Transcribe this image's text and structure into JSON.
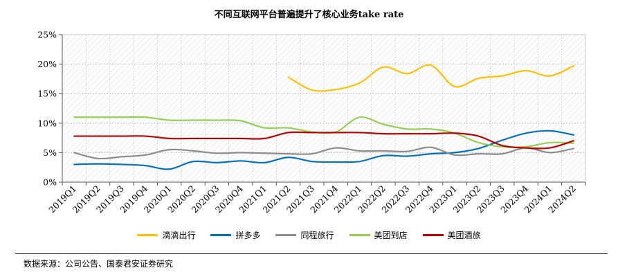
{
  "chart_data": {
    "type": "line",
    "title": "不同互联网平台普遍提升了核心业务take rate",
    "xlabel": "",
    "ylabel": "",
    "categories": [
      "2019Q1",
      "2019Q2",
      "2019Q3",
      "2019Q4",
      "2020Q1",
      "2020Q2",
      "2020Q3",
      "2020Q4",
      "2021Q1",
      "2021Q2",
      "2021Q3",
      "2021Q4",
      "2022Q1",
      "2022Q2",
      "2022Q3",
      "2022Q4",
      "2023Q1",
      "2023Q2",
      "2023Q3",
      "2023Q4",
      "2024Q1",
      "2024Q2"
    ],
    "yticks": [
      "0%",
      "5%",
      "10%",
      "15%",
      "20%",
      "25%"
    ],
    "ylim": [
      0,
      25
    ],
    "grid": true,
    "legend_position": "bottom",
    "series": [
      {
        "name": "滴滴出行",
        "color": "#FFC000",
        "values": [
          null,
          null,
          null,
          null,
          null,
          null,
          null,
          null,
          null,
          17.8,
          15.6,
          15.7,
          16.8,
          19.5,
          18.4,
          19.8,
          16.2,
          17.6,
          18.0,
          18.9,
          18.0,
          19.7
        ]
      },
      {
        "name": "拼多多",
        "color": "#0070C0",
        "values": [
          3.0,
          3.1,
          3.0,
          2.8,
          2.2,
          3.5,
          3.3,
          3.6,
          3.3,
          4.2,
          3.5,
          3.4,
          3.5,
          4.5,
          4.4,
          4.8,
          5.0,
          5.7,
          7.1,
          8.3,
          8.7,
          8.0
        ]
      },
      {
        "name": "同程旅行",
        "color": "#8C8C8C",
        "values": [
          5.0,
          4.0,
          4.3,
          4.6,
          5.5,
          5.3,
          4.9,
          5.0,
          4.9,
          4.8,
          4.8,
          5.8,
          5.3,
          5.3,
          5.2,
          5.9,
          4.6,
          4.8,
          4.8,
          5.8,
          5.0,
          5.7
        ]
      },
      {
        "name": "美团到店",
        "color": "#92D050",
        "values": [
          11.0,
          11.0,
          11.0,
          11.0,
          10.5,
          10.5,
          10.5,
          10.4,
          9.2,
          9.2,
          8.5,
          8.5,
          11.0,
          9.8,
          9.0,
          9.0,
          8.3,
          6.7,
          6.0,
          6.0,
          6.7,
          6.6
        ]
      },
      {
        "name": "美团酒旅",
        "color": "#C00000",
        "values": [
          7.8,
          7.8,
          7.8,
          7.8,
          7.4,
          7.4,
          7.4,
          7.4,
          7.4,
          8.4,
          8.4,
          8.4,
          8.4,
          8.2,
          8.2,
          8.2,
          8.3,
          7.8,
          6.2,
          5.8,
          5.8,
          7.0
        ]
      }
    ]
  },
  "source": "数据来源：公司公告、国泰君安证券研究"
}
